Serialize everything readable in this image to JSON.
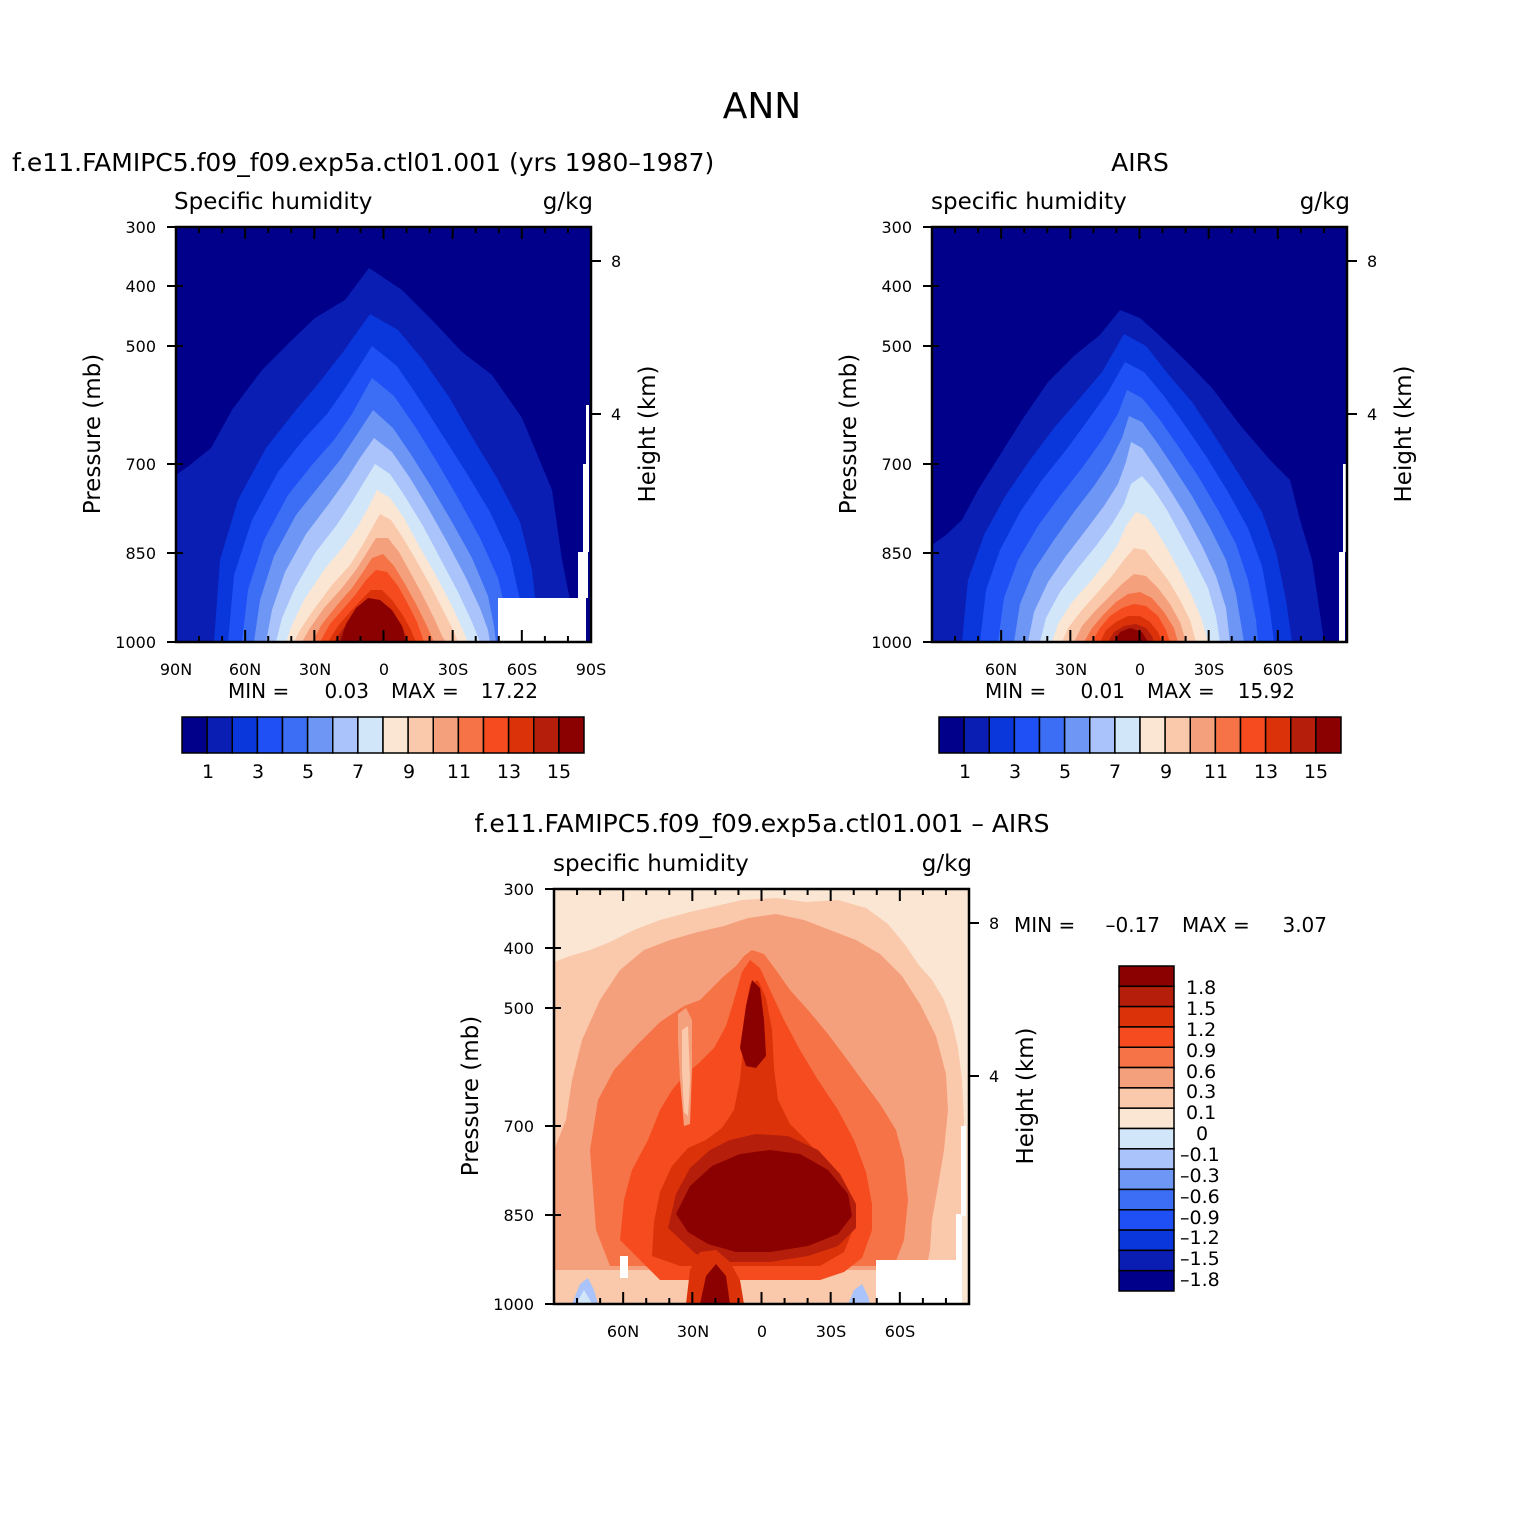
{
  "figure_title": "ANN",
  "chart_data": [
    {
      "type": "heatmap",
      "title": "f.e11.FAMIPC5.f09_f09.exp5a.ctl01.001 (yrs 1980–1987)",
      "left_label": "Specific humidity",
      "right_label": "g/kg",
      "ylabel": "Pressure (mb)",
      "ylabel_right": "Height (km)",
      "y_ticks": [
        "300",
        "400",
        "500",
        "700",
        "850",
        "1000"
      ],
      "y_right_ticks": [
        "8",
        "4"
      ],
      "x_ticks": [
        "90N",
        "60N",
        "30N",
        "0",
        "30S",
        "60S",
        "90S"
      ],
      "ylim": [
        1000,
        300
      ],
      "min_label": "MIN =",
      "min_value": "0.03",
      "max_label": "MAX =",
      "max_value": "17.22",
      "peak_value": 17.22,
      "min_value_num": 0.03,
      "colorbar_labels": [
        "1",
        "3",
        "5",
        "7",
        "9",
        "11",
        "13",
        "15"
      ],
      "levels": [
        1,
        2,
        3,
        4,
        5,
        6,
        7,
        8,
        9,
        10,
        11,
        12,
        13,
        14,
        15
      ]
    },
    {
      "type": "heatmap",
      "title": "AIRS",
      "left_label": "specific humidity",
      "right_label": "g/kg",
      "ylabel": "Pressure (mb)",
      "ylabel_right": "Height (km)",
      "y_ticks": [
        "300",
        "400",
        "500",
        "700",
        "850",
        "1000"
      ],
      "y_right_ticks": [
        "8",
        "4"
      ],
      "x_ticks": [
        "60N",
        "30N",
        "0",
        "30S",
        "60S"
      ],
      "ylim": [
        1000,
        300
      ],
      "min_label": "MIN =",
      "min_value": "0.01",
      "max_label": "MAX =",
      "max_value": "15.92",
      "peak_value": 15.92,
      "min_value_num": 0.01,
      "colorbar_labels": [
        "1",
        "3",
        "5",
        "7",
        "9",
        "11",
        "13",
        "15"
      ],
      "levels": [
        1,
        2,
        3,
        4,
        5,
        6,
        7,
        8,
        9,
        10,
        11,
        12,
        13,
        14,
        15
      ]
    },
    {
      "type": "heatmap",
      "title": "f.e11.FAMIPC5.f09_f09.exp5a.ctl01.001 – AIRS",
      "left_label": "specific humidity",
      "right_label": "g/kg",
      "ylabel": "Pressure (mb)",
      "ylabel_right": "Height (km)",
      "y_ticks": [
        "300",
        "400",
        "500",
        "700",
        "850",
        "1000"
      ],
      "y_right_ticks": [
        "8",
        "4"
      ],
      "x_ticks": [
        "60N",
        "30N",
        "0",
        "30S",
        "60S"
      ],
      "ylim": [
        1000,
        300
      ],
      "min_label": "MIN =",
      "min_value": "–0.17",
      "max_label": "MAX =",
      "max_value": "3.07",
      "peak_value": 3.07,
      "min_value_num": -0.17,
      "colorbar_labels": [
        "1.8",
        "1.5",
        "1.2",
        "0.9",
        "0.6",
        "0.3",
        "0.1",
        "0",
        "–0.1",
        "–0.3",
        "–0.6",
        "–0.9",
        "–1.2",
        "–1.5",
        "–1.8"
      ],
      "levels": [
        1.8,
        1.5,
        1.2,
        0.9,
        0.6,
        0.3,
        0.1,
        0,
        -0.1,
        -0.3,
        -0.6,
        -0.9,
        -1.2,
        -1.5,
        -1.8
      ]
    }
  ],
  "colormap": [
    "#00008b",
    "#0a1eb4",
    "#0a37dc",
    "#1e50f5",
    "#3c6ef5",
    "#6e96f5",
    "#aac3fa",
    "#d2e6fa",
    "#fae6d2",
    "#fac8aa",
    "#f5a07d",
    "#f57346",
    "#f54b1e",
    "#dc320a",
    "#b41e0a",
    "#8b0000"
  ]
}
